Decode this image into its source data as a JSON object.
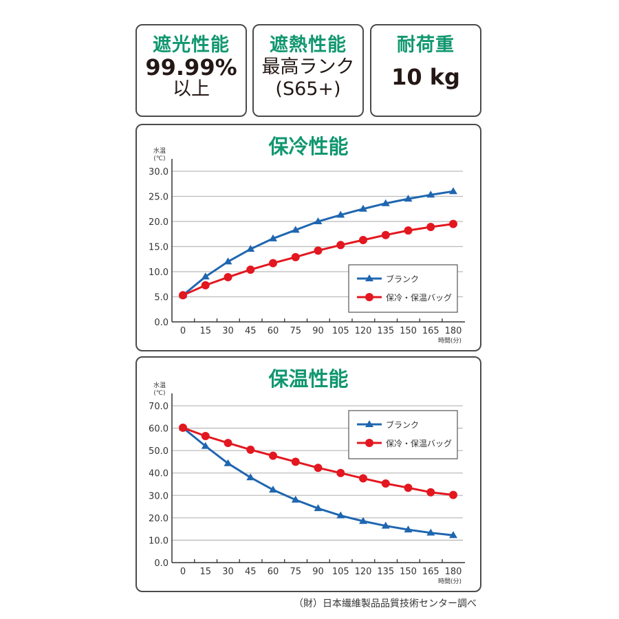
{
  "specs": [
    {
      "title": "遮光性能",
      "lines": [
        "99.99%",
        "以上"
      ]
    },
    {
      "title": "遮熱性能",
      "lines": [
        "最高ランク",
        "(S65+)"
      ]
    },
    {
      "title": "耐荷重",
      "lines": [
        "10 kg"
      ]
    }
  ],
  "colors": {
    "accent": "#11976f",
    "blank": "#1f66b0",
    "bag": "#e3171f"
  },
  "chart_data": [
    {
      "type": "line",
      "title": "保冷性能",
      "ylabel": "水温",
      "yunit": "(℃)",
      "xlabel": "時間(分)",
      "ylim": [
        0,
        30
      ],
      "yticks": [
        "0.0",
        "5.0",
        "10.0",
        "15.0",
        "20.0",
        "25.0",
        "30.0"
      ],
      "x": [
        0,
        15,
        30,
        45,
        60,
        75,
        90,
        105,
        120,
        135,
        150,
        165,
        180
      ],
      "series": [
        {
          "name": "ブランク",
          "marker": "triangle",
          "values": [
            5.3,
            9.0,
            12.0,
            14.5,
            16.6,
            18.3,
            20.0,
            21.3,
            22.5,
            23.6,
            24.5,
            25.3,
            26.0
          ]
        },
        {
          "name": "保冷・保温バッグ",
          "marker": "circle",
          "values": [
            5.3,
            7.3,
            8.9,
            10.4,
            11.7,
            12.9,
            14.2,
            15.3,
            16.3,
            17.3,
            18.2,
            18.9,
            19.5
          ]
        }
      ],
      "legend": "bottom-right",
      "grid": true
    },
    {
      "type": "line",
      "title": "保温性能",
      "ylabel": "水温",
      "yunit": "(℃)",
      "xlabel": "時間(分)",
      "ylim": [
        0,
        70
      ],
      "yticks": [
        "0.0",
        "10.0",
        "20.0",
        "30.0",
        "40.0",
        "50.0",
        "60.0",
        "70.0"
      ],
      "x": [
        0,
        15,
        30,
        45,
        60,
        75,
        90,
        105,
        120,
        135,
        150,
        165,
        180
      ],
      "series": [
        {
          "name": "ブランク",
          "marker": "triangle",
          "values": [
            60.2,
            52.0,
            44.3,
            38.0,
            32.5,
            28.0,
            24.2,
            21.0,
            18.5,
            16.4,
            14.7,
            13.3,
            12.2
          ]
        },
        {
          "name": "保冷・保温バッグ",
          "marker": "circle",
          "values": [
            60.2,
            56.5,
            53.4,
            50.4,
            47.7,
            45.0,
            42.3,
            40.0,
            37.6,
            35.3,
            33.4,
            31.4,
            30.2
          ]
        }
      ],
      "legend": "top-right",
      "grid": true
    }
  ],
  "footer": "（財）日本繊維製品品質技術センター調べ"
}
